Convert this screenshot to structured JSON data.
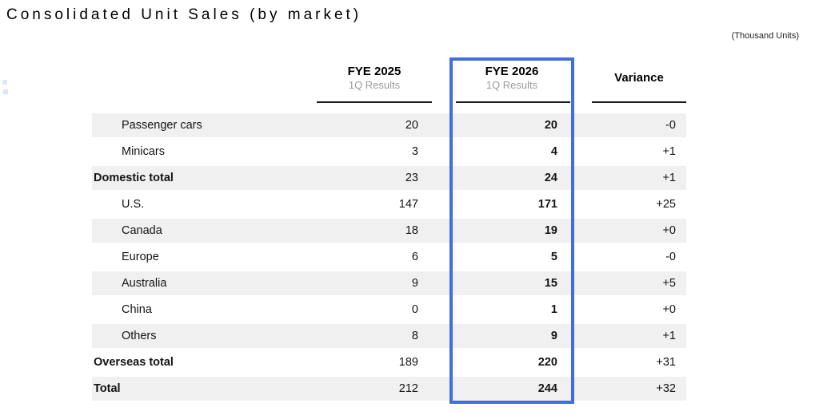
{
  "page": {
    "title": "Consolidated Unit Sales (by market)",
    "unit_note": "(Thousand Units)"
  },
  "table": {
    "columns": [
      {
        "id": "fye2025",
        "label": "FYE 2025",
        "sublabel": "1Q Results",
        "highlighted": false
      },
      {
        "id": "fye2026",
        "label": "FYE 2026",
        "sublabel": "1Q Results",
        "highlighted": true
      },
      {
        "id": "variance",
        "label": "Variance",
        "sublabel": "",
        "highlighted": false
      }
    ],
    "rows": [
      {
        "label": "Passenger cars",
        "indent": true,
        "total": false,
        "shaded": true,
        "fye2025": "20",
        "fye2026": "20",
        "variance": "-0"
      },
      {
        "label": "Minicars",
        "indent": true,
        "total": false,
        "shaded": false,
        "fye2025": "3",
        "fye2026": "4",
        "variance": "+1"
      },
      {
        "label": "Domestic total",
        "indent": false,
        "total": true,
        "shaded": true,
        "fye2025": "23",
        "fye2026": "24",
        "variance": "+1"
      },
      {
        "label": "U.S.",
        "indent": true,
        "total": false,
        "shaded": false,
        "fye2025": "147",
        "fye2026": "171",
        "variance": "+25"
      },
      {
        "label": "Canada",
        "indent": true,
        "total": false,
        "shaded": true,
        "fye2025": "18",
        "fye2026": "19",
        "variance": "+0"
      },
      {
        "label": "Europe",
        "indent": true,
        "total": false,
        "shaded": false,
        "fye2025": "6",
        "fye2026": "5",
        "variance": "-0"
      },
      {
        "label": "Australia",
        "indent": true,
        "total": false,
        "shaded": true,
        "fye2025": "9",
        "fye2026": "15",
        "variance": "+5"
      },
      {
        "label": "China",
        "indent": true,
        "total": false,
        "shaded": false,
        "fye2025": "0",
        "fye2026": "1",
        "variance": "+0"
      },
      {
        "label": "Others",
        "indent": true,
        "total": false,
        "shaded": true,
        "fye2025": "8",
        "fye2026": "9",
        "variance": "+1"
      },
      {
        "label": "Overseas total",
        "indent": false,
        "total": true,
        "shaded": false,
        "fye2025": "189",
        "fye2026": "220",
        "variance": "+31"
      },
      {
        "label": "Total",
        "indent": false,
        "total": true,
        "shaded": true,
        "fye2025": "212",
        "fye2026": "244",
        "variance": "+32"
      }
    ]
  },
  "colors": {
    "highlight_border": "#3e6ee0",
    "row_shade": "#f0f0f0",
    "subheader_text": "#9b9b9b"
  }
}
